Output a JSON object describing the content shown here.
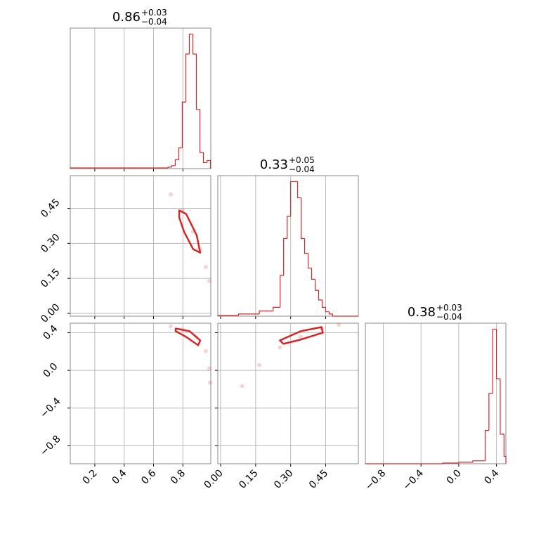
{
  "chart_data": {
    "type": "corner",
    "color": "#d62728",
    "grid": true,
    "parameters": [
      {
        "title": {
          "value": "0.86",
          "plus": "+0.03",
          "minus": "−0.04"
        },
        "lim": [
          0.033,
          0.99
        ],
        "ticks": [
          0.2,
          0.4,
          0.6,
          0.8
        ],
        "hist": {
          "bins": [
            0.033,
            0.7,
            0.724,
            0.748,
            0.772,
            0.796,
            0.82,
            0.844,
            0.868,
            0.892,
            0.916,
            0.94,
            0.964,
            0.988
          ],
          "counts": [
            1,
            2,
            4,
            12,
            28,
            90,
            155,
            182,
            155,
            80,
            22,
            8,
            11
          ],
          "ylim": [
            0,
            190
          ]
        }
      },
      {
        "title": {
          "value": "0.33",
          "plus": "+0.05",
          "minus": "−0.04"
        },
        "lim": [
          -0.012,
          0.59
        ],
        "ticks": [
          {
            "value": 0,
            "label": "0.00"
          },
          {
            "value": 0.15,
            "label": "0.15"
          },
          {
            "value": 0.3,
            "label": "0.30"
          },
          {
            "value": 0.45,
            "label": "0.45"
          }
        ],
        "hist": {
          "bins": [
            -0.012,
            0.077,
            0.166,
            0.225,
            0.255,
            0.27,
            0.285,
            0.3,
            0.315,
            0.33,
            0.345,
            0.36,
            0.375,
            0.39,
            0.405,
            0.42,
            0.435,
            0.45,
            0.465,
            0.48,
            0.59
          ],
          "counts": [
            1,
            3,
            7,
            12,
            55,
            105,
            135,
            182,
            182,
            160,
            105,
            85,
            65,
            50,
            35,
            22,
            12,
            6,
            3,
            0
          ],
          "ylim": [
            0,
            190
          ]
        }
      },
      {
        "title": {
          "value": "0.38",
          "plus": "+0.03",
          "minus": "−0.04"
        },
        "lim": [
          -0.99,
          0.5
        ],
        "ticks": [
          {
            "value": -0.8,
            "label": "−0.8"
          },
          {
            "value": -0.4,
            "label": "−0.4"
          },
          {
            "value": 0,
            "label": "0.0"
          },
          0.4
        ],
        "hist": {
          "bins": [
            -0.99,
            -0.17,
            0.0,
            0.15,
            0.28,
            0.32,
            0.36,
            0.4,
            0.44,
            0.48,
            0.5
          ],
          "counts": [
            0,
            1,
            2,
            4,
            45,
            95,
            182,
            115,
            40,
            10
          ],
          "ylim": [
            0,
            190
          ]
        }
      }
    ],
    "pairs": [
      {
        "samples": {
          "x": [
            0.717,
            0.798,
            0.87,
            0.918,
            0.956,
            0.98
          ],
          "y": [
            0.51,
            0.441,
            0.35,
            0.275,
            0.199,
            0.139
          ]
        },
        "contour": {
          "x": [
            0.775,
            0.822,
            0.894,
            0.918,
            0.87,
            0.808,
            0.775
          ],
          "y": [
            0.441,
            0.426,
            0.335,
            0.26,
            0.275,
            0.35,
            0.411
          ]
        }
      },
      {
        "samples": {
          "x": [
            0.717,
            0.798,
            0.894,
            0.956,
            0.98,
            0.985
          ],
          "y": [
            0.467,
            0.43,
            0.355,
            0.206,
            0.02,
            -0.13
          ]
        },
        "contour": {
          "x": [
            0.751,
            0.846,
            0.918,
            0.904,
            0.822,
            0.751
          ],
          "y": [
            0.444,
            0.415,
            0.318,
            0.266,
            0.355,
            0.415
          ]
        }
      },
      {
        "samples": {
          "x": [
            0.092,
            0.166,
            0.254,
            0.343,
            0.432,
            0.506
          ],
          "y": [
            -0.166,
            0.057,
            0.243,
            0.355,
            0.444,
            0.482
          ]
        },
        "contour": {
          "x": [
            0.254,
            0.343,
            0.432,
            0.438,
            0.343,
            0.269
          ],
          "y": [
            0.318,
            0.415,
            0.459,
            0.4,
            0.326,
            0.281
          ]
        }
      }
    ]
  }
}
